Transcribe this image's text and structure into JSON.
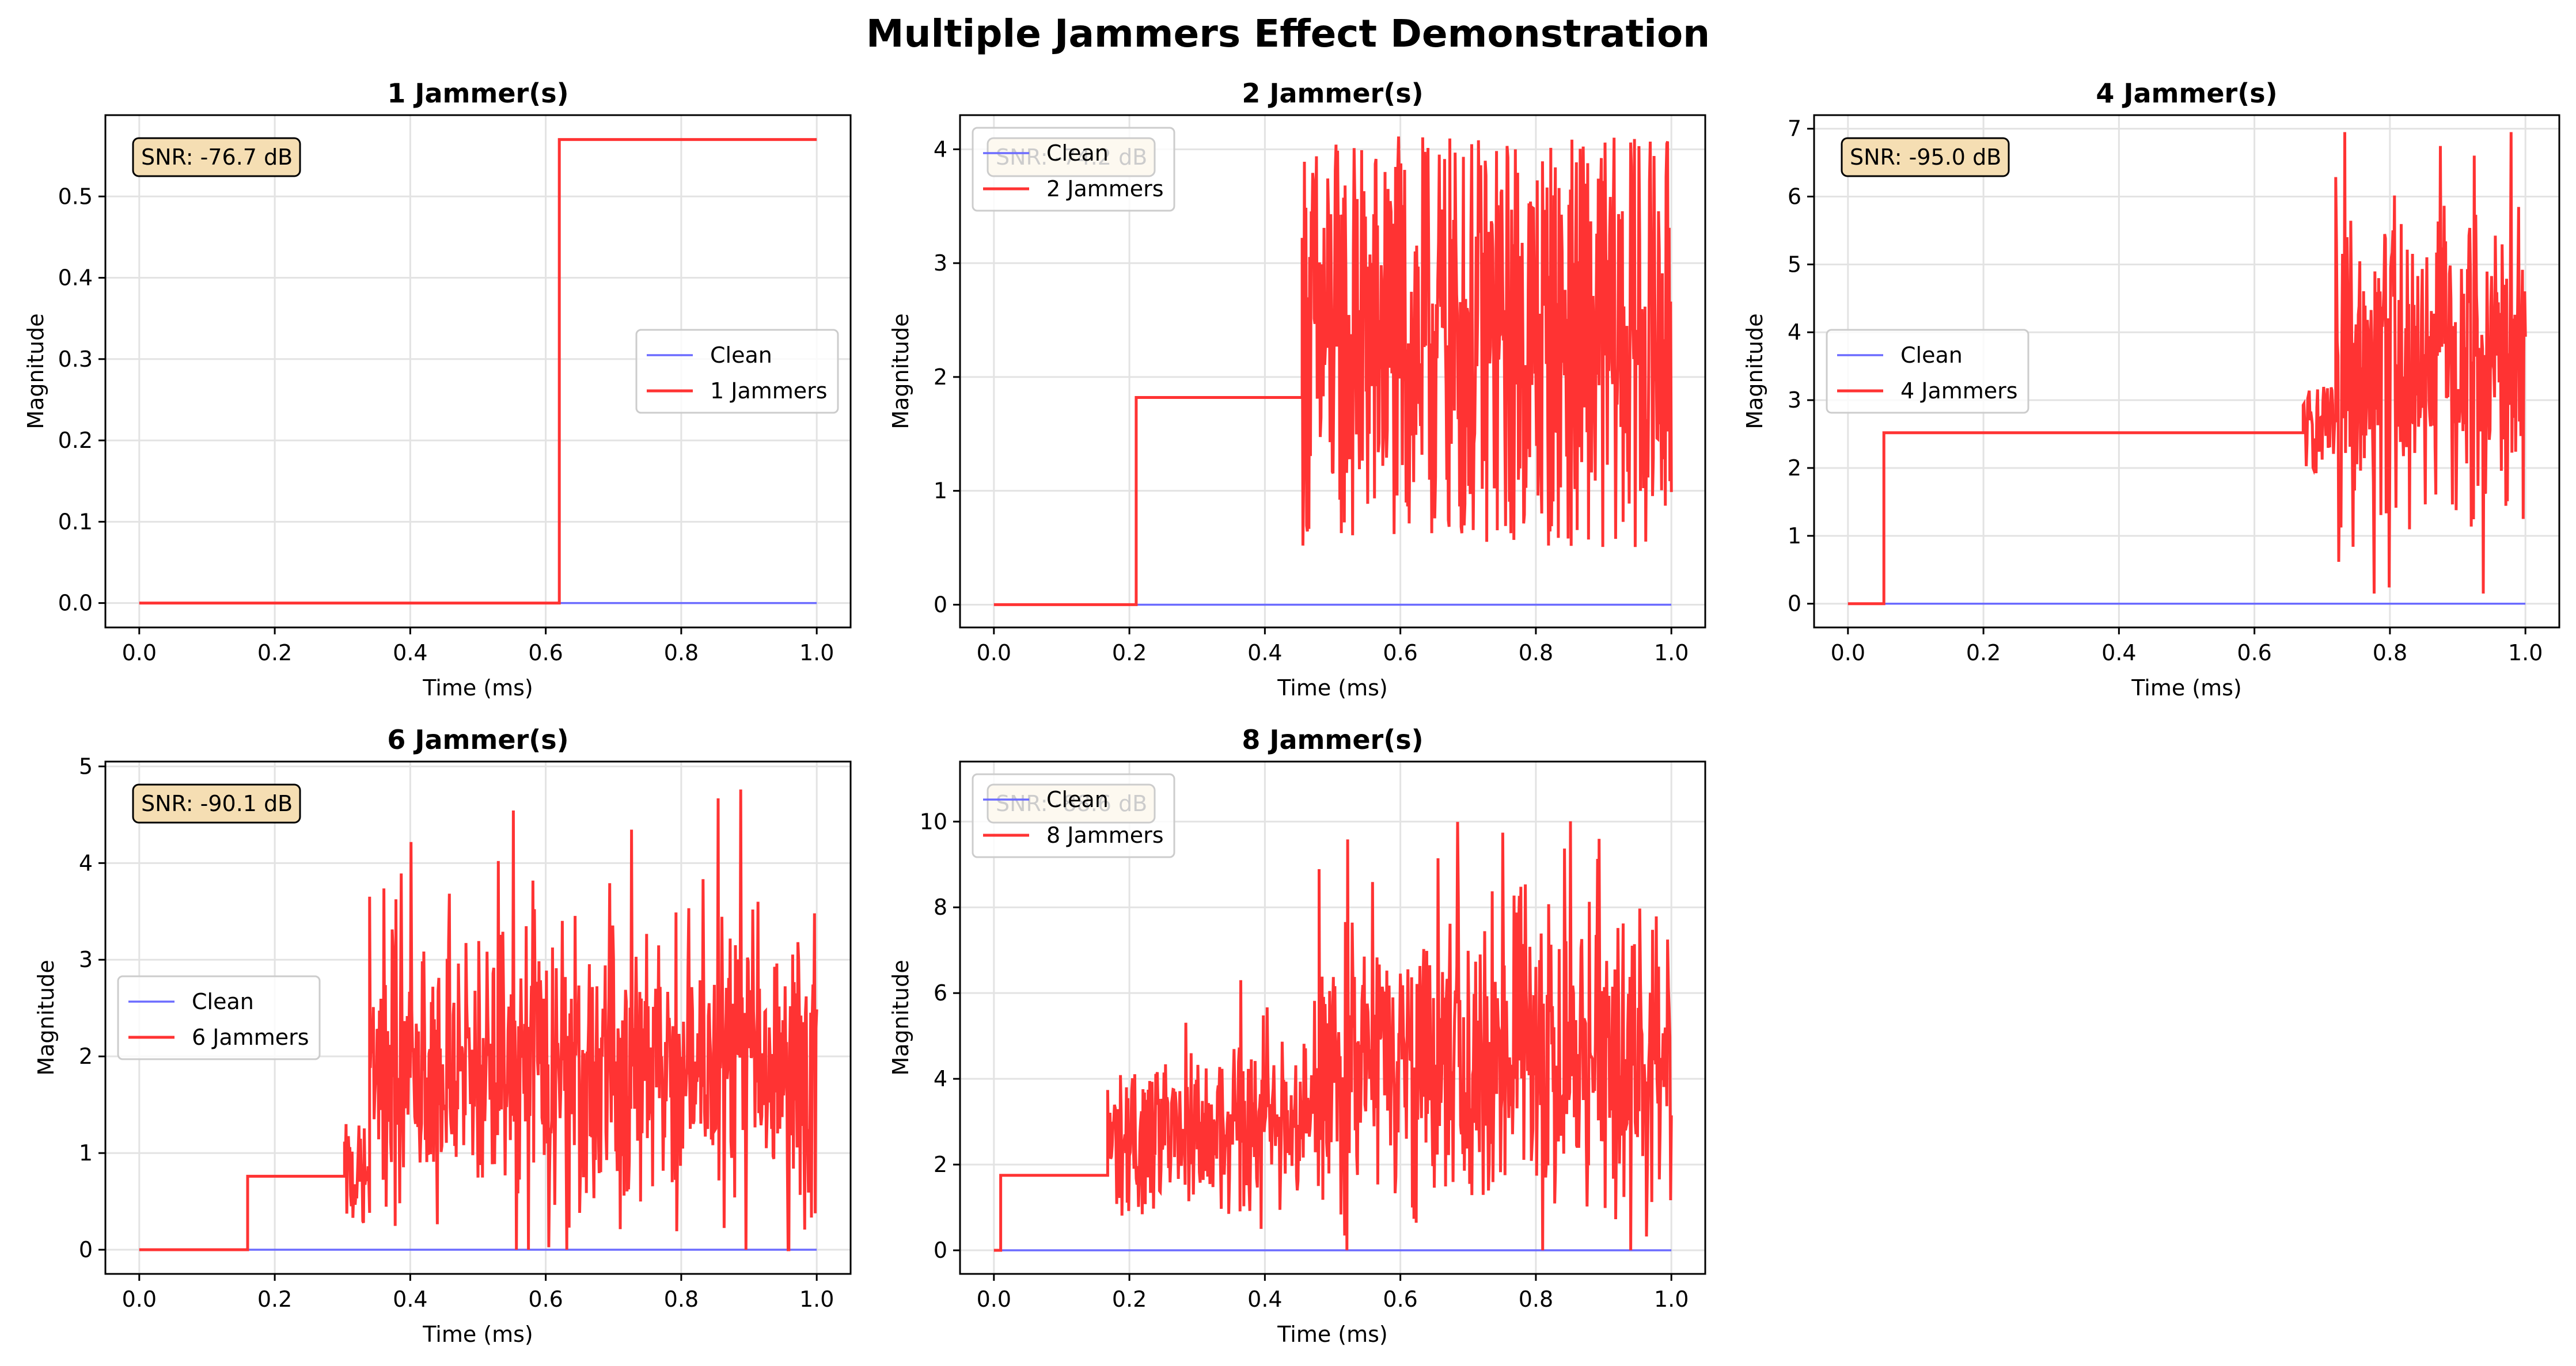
{
  "figure": {
    "title": "Multiple Jammers Effect Demonstration"
  },
  "colors": {
    "clean": "#6b6bff",
    "jammed": "#ff3333",
    "snr_box_fill": "#f5deb3",
    "grid": "#e3e3e3"
  },
  "chart_data": [
    {
      "type": "line",
      "title": "1 Jammer(s)",
      "xlabel": "Time (ms)",
      "ylabel": "Magnitude",
      "xlim": [
        -0.05,
        1.05
      ],
      "ylim": [
        -0.03,
        0.6
      ],
      "xticks": [
        0.0,
        0.2,
        0.4,
        0.6,
        0.8,
        1.0
      ],
      "yticks": [
        0.0,
        0.1,
        0.2,
        0.3,
        0.4,
        0.5
      ],
      "ytick_format": 1,
      "grid": true,
      "legend_position": "center-right",
      "annotation": "SNR: -76.7 dB",
      "series": [
        {
          "name": "Clean",
          "kind": "flat",
          "value": 0
        },
        {
          "name": "1 Jammers",
          "kind": "jammed",
          "steps": [
            [
              0.0,
              0.0
            ],
            [
              0.62,
              0.57
            ]
          ]
        }
      ]
    },
    {
      "type": "line",
      "title": "2 Jammer(s)",
      "xlabel": "Time (ms)",
      "ylabel": "Magnitude",
      "xlim": [
        -0.05,
        1.05
      ],
      "ylim": [
        -0.2,
        4.3
      ],
      "xticks": [
        0.0,
        0.2,
        0.4,
        0.6,
        0.8,
        1.0
      ],
      "yticks": [
        0,
        1,
        2,
        3,
        4
      ],
      "ytick_format": 0,
      "grid": true,
      "legend_position": "upper-left",
      "annotation": "SNR: -74.2 dB",
      "series": [
        {
          "name": "Clean",
          "kind": "flat",
          "value": 0
        },
        {
          "name": "2 Jammers",
          "kind": "jammed",
          "steps": [
            [
              0.0,
              0.0
            ],
            [
              0.21,
              1.82
            ]
          ],
          "noise": [
            {
              "start": 0.455,
              "end": 1.0,
              "min": 0.5,
              "max": 4.12,
              "mode": "uniform"
            }
          ]
        }
      ]
    },
    {
      "type": "line",
      "title": "4 Jammer(s)",
      "xlabel": "Time (ms)",
      "ylabel": "Magnitude",
      "xlim": [
        -0.05,
        1.05
      ],
      "ylim": [
        -0.35,
        7.2
      ],
      "xticks": [
        0.0,
        0.2,
        0.4,
        0.6,
        0.8,
        1.0
      ],
      "yticks": [
        0,
        1,
        2,
        3,
        4,
        5,
        6,
        7
      ],
      "ytick_format": 0,
      "grid": true,
      "legend_position": "center-left",
      "annotation": "SNR: -95.0 dB",
      "series": [
        {
          "name": "Clean",
          "kind": "flat",
          "value": 0
        },
        {
          "name": "4 Jammers",
          "kind": "jammed",
          "steps": [
            [
              0.0,
              0.0
            ],
            [
              0.053,
              2.52
            ]
          ],
          "noise": [
            {
              "start": 0.672,
              "end": 0.72,
              "min": 1.9,
              "max": 3.2,
              "mode": "uniform"
            },
            {
              "start": 0.72,
              "end": 1.0,
              "min": 0.15,
              "max": 6.95,
              "center": 3.6,
              "spread": 1.2,
              "mode": "gauss"
            }
          ]
        }
      ]
    },
    {
      "type": "line",
      "title": "6 Jammer(s)",
      "xlabel": "Time (ms)",
      "ylabel": "Magnitude",
      "xlim": [
        -0.05,
        1.05
      ],
      "ylim": [
        -0.25,
        5.05
      ],
      "xticks": [
        0.0,
        0.2,
        0.4,
        0.6,
        0.8,
        1.0
      ],
      "yticks": [
        0,
        1,
        2,
        3,
        4,
        5
      ],
      "ytick_format": 0,
      "grid": true,
      "legend_position": "center-left",
      "annotation": "SNR: -90.1 dB",
      "series": [
        {
          "name": "Clean",
          "kind": "flat",
          "value": 0
        },
        {
          "name": "6 Jammers",
          "kind": "jammed",
          "steps": [
            [
              0.0,
              0.0
            ],
            [
              0.16,
              0.76
            ]
          ],
          "noise": [
            {
              "start": 0.303,
              "end": 0.34,
              "min": 0.25,
              "max": 1.3,
              "mode": "uniform"
            },
            {
              "start": 0.34,
              "end": 1.0,
              "min": 0.0,
              "max": 4.8,
              "center": 1.85,
              "spread": 0.75,
              "mode": "gauss"
            }
          ]
        }
      ]
    },
    {
      "type": "line",
      "title": "8 Jammer(s)",
      "xlabel": "Time (ms)",
      "ylabel": "Magnitude",
      "xlim": [
        -0.05,
        1.05
      ],
      "ylim": [
        -0.55,
        11.4
      ],
      "xticks": [
        0.0,
        0.2,
        0.4,
        0.6,
        0.8,
        1.0
      ],
      "yticks": [
        0,
        2,
        4,
        6,
        8,
        10
      ],
      "ytick_format": 0,
      "grid": true,
      "legend_position": "upper-left",
      "annotation": "SNR: -88.6 dB",
      "series": [
        {
          "name": "Clean",
          "kind": "flat",
          "value": 0
        },
        {
          "name": "8 Jammers",
          "kind": "jammed",
          "steps": [
            [
              0.0,
              0.0
            ],
            [
              0.01,
              1.75
            ]
          ],
          "noise": [
            {
              "start": 0.168,
              "end": 0.25,
              "min": 0.8,
              "max": 4.2,
              "mode": "uniform"
            },
            {
              "start": 0.25,
              "end": 0.48,
              "min": 0.5,
              "max": 6.3,
              "center": 3.0,
              "spread": 1.0,
              "mode": "gauss"
            },
            {
              "start": 0.48,
              "end": 1.0,
              "min": 0.0,
              "max": 10.9,
              "center": 4.3,
              "spread": 1.6,
              "mode": "gauss"
            }
          ]
        }
      ]
    }
  ]
}
